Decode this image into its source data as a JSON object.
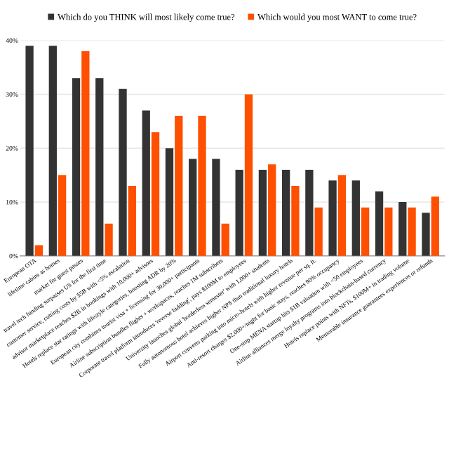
{
  "chart_data": {
    "type": "bar",
    "categories": [
      "European OTA",
      "lifetime cabins as homes",
      "market for guest passes",
      "travel tech funding surpasses US for the first time",
      "customer service, cutting costs by $5B with <5% escalation",
      "advisor marketplace reaches $2B in bookings with 10,000+ advisors",
      "Hotels replace star ratings with lifestyle categories, boosting ADR by 20%",
      "European city combines tourist visa + licensing for 30,000+ participants",
      "Airline subscription bundles flights + workspaces, reaches 1M subscribers",
      "Corporate travel platform introduces 'reverse bidding', pays $100M to employees",
      "University launches global 'borderless semester' with 1,000+ students",
      "Fully autonomous hotel achieves higher NPS than traditional luxury hotels",
      "Airport converts parking into micro-hotels with higher revenue per sq. ft.",
      "Anti-resort charges $2,000+/night for basic stays, reaches 90% occupancy",
      "One-stop MENA startup hits $1B valuation with <50 employees",
      "Airline alliances merge loyalty programs into blockchain-based currency",
      "Hotels replace points with NFTs, $100M+ in trading volume",
      "Memorable insurance guarantees experiences or refunds"
    ],
    "series": [
      {
        "name": "Which do you THINK will most likely come true?",
        "color": "#333333",
        "values": [
          39,
          39,
          33,
          33,
          31,
          27,
          20,
          18,
          18,
          16,
          16,
          16,
          16,
          14,
          14,
          12,
          10,
          8
        ]
      },
      {
        "name": "Which would you most WANT to come true?",
        "color": "#ff4f00",
        "values": [
          2,
          15,
          38,
          6,
          13,
          23,
          26,
          26,
          6,
          30,
          17,
          13,
          9,
          15,
          9,
          9,
          9,
          11
        ]
      }
    ],
    "ylim": [
      0,
      40
    ],
    "yticks": [
      {
        "value": 0,
        "label": "0%"
      },
      {
        "value": 10,
        "label": "10%"
      },
      {
        "value": 20,
        "label": "20%"
      },
      {
        "value": 30,
        "label": "30%"
      },
      {
        "value": 40,
        "label": "40%"
      }
    ],
    "grid": "y",
    "legend": "top"
  }
}
